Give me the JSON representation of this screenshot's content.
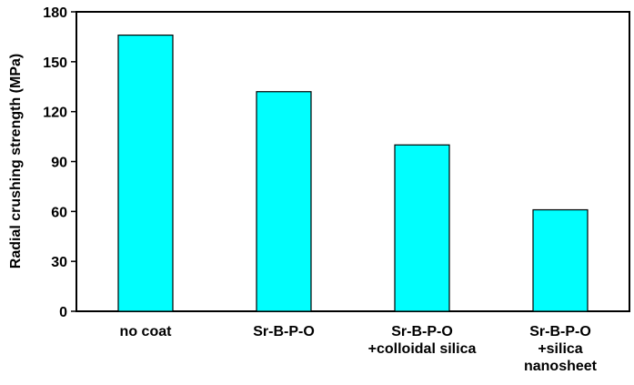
{
  "chart_data": {
    "type": "bar",
    "categories": [
      [
        "no coat"
      ],
      [
        "Sr-B-P-O"
      ],
      [
        "Sr-B-P-O",
        "+colloidal silica"
      ],
      [
        "Sr-B-P-O",
        "+silica",
        "nanosheet"
      ]
    ],
    "values": [
      166,
      132,
      100,
      61
    ],
    "title": "",
    "xlabel": "",
    "ylabel": "Radial crushing strength (MPa)",
    "ylim": [
      0,
      180
    ],
    "yticks": [
      0,
      30,
      60,
      90,
      120,
      150,
      180
    ],
    "grid": false,
    "legend": "none",
    "colors": {
      "bar_fill": "#00FFFF",
      "bar_stroke": "#000000",
      "axis": "#000000"
    }
  }
}
